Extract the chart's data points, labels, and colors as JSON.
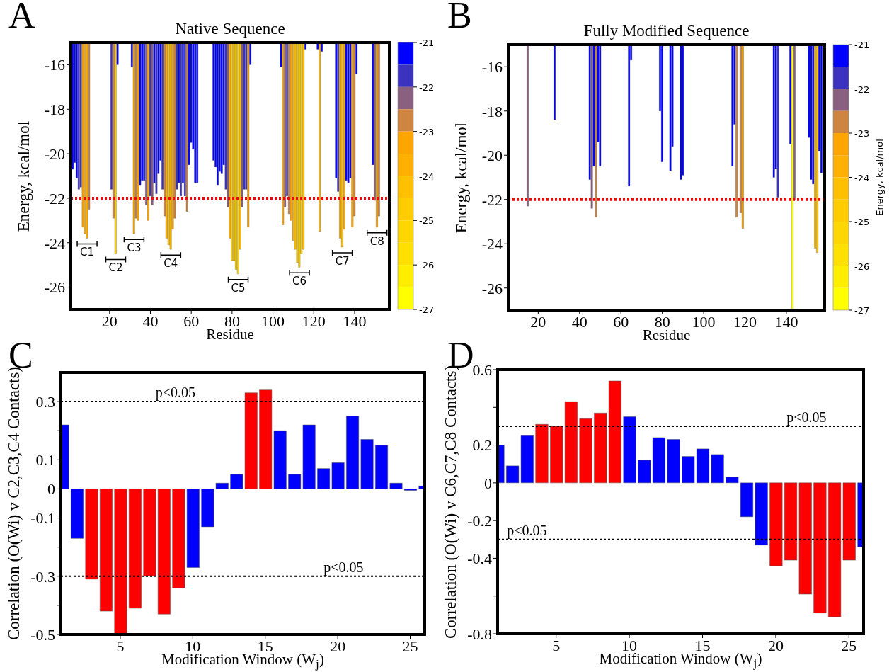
{
  "chart_data": [
    {
      "type": "bar",
      "title": "Native Sequence",
      "xlabel": "Residue",
      "ylabel": "Energy, kcal/mol",
      "annotations": [
        "A",
        {
          "text": "C1",
          "x": 9,
          "y": -23.8
        },
        {
          "text": "C2",
          "x": 23,
          "y": -24.5
        },
        {
          "text": "C3",
          "x": 32,
          "y": -23.6
        },
        {
          "text": "C4",
          "x": 50,
          "y": -24.3
        },
        {
          "text": "C5",
          "x": 83,
          "y": -25.4
        },
        {
          "text": "C6",
          "x": 113,
          "y": -25.1
        },
        {
          "text": "C7",
          "x": 134,
          "y": -24.2
        },
        {
          "text": "C8",
          "x": 151,
          "y": -23.3
        }
      ],
      "x": [
        2,
        3,
        4,
        5,
        6,
        7,
        8,
        9,
        10,
        21,
        22,
        23,
        24,
        31,
        32,
        33,
        34,
        35,
        36,
        37,
        38,
        39,
        40,
        41,
        42,
        43,
        44,
        45,
        46,
        47,
        48,
        49,
        50,
        51,
        52,
        53,
        54,
        55,
        56,
        57,
        58,
        59,
        60,
        61,
        62,
        63,
        71,
        72,
        73,
        74,
        75,
        76,
        77,
        78,
        79,
        80,
        81,
        82,
        83,
        84,
        85,
        86,
        87,
        88,
        89,
        104,
        105,
        106,
        107,
        108,
        109,
        110,
        111,
        112,
        113,
        114,
        115,
        116,
        122,
        123,
        124,
        131,
        132,
        133,
        134,
        135,
        136,
        137,
        138,
        139,
        140,
        141,
        149,
        150,
        151,
        152
      ],
      "values": [
        -20.7,
        -20.4,
        -21.1,
        -21.6,
        -21.5,
        -23.3,
        -23.6,
        -23.8,
        -22.5,
        -21.6,
        -22.9,
        -24.5,
        -16.0,
        -16.1,
        -23.6,
        -22.9,
        -23.0,
        -21.4,
        -21.2,
        -21.2,
        -22.3,
        -23.0,
        -21.9,
        -22.3,
        -21.3,
        -21.8,
        -20.9,
        -20.3,
        -21.6,
        -22.8,
        -23.8,
        -24.1,
        -24.3,
        -23.4,
        -22.9,
        -21.6,
        -21.3,
        -21.9,
        -21.3,
        -21.9,
        -22.6,
        -20.5,
        -19.5,
        -19.8,
        -21.3,
        -21.3,
        -20.3,
        -20.6,
        -21.4,
        -20.8,
        -20.9,
        -20.5,
        -21.6,
        -22.4,
        -23.8,
        -24.8,
        -24.8,
        -25.2,
        -25.4,
        -24.3,
        -22.4,
        -21.6,
        -21.6,
        -23.3,
        -16.0,
        -16.1,
        -23.2,
        -22.4,
        -21.9,
        -22.7,
        -23.0,
        -23.9,
        -24.3,
        -24.9,
        -25.1,
        -24.5,
        -24.3,
        -15.3,
        -15.3,
        -23.5,
        -15.4,
        -21.1,
        -21.7,
        -23.8,
        -24.2,
        -23.4,
        -21.2,
        -21.3,
        -21.1,
        -23.3,
        -22.8,
        -16.4,
        -20.5,
        -22.1,
        -23.3,
        -22.8
      ],
      "xlim": [
        1,
        157
      ],
      "xticks": [
        20,
        40,
        60,
        80,
        100,
        120,
        140
      ],
      "ylim": [
        -27,
        -15
      ],
      "yticks": [
        -26,
        -24,
        -22,
        -20,
        -18,
        -16
      ],
      "clim": [
        -27,
        -21
      ],
      "cticks": [
        -27,
        -26,
        -25,
        -24,
        -23,
        -22,
        -21
      ],
      "ref_lines": [
        {
          "axis": "y",
          "value": -22,
          "color": "#ff0000",
          "line_style": "dotted"
        }
      ]
    },
    {
      "type": "bar",
      "title": "Fully Modified Sequence",
      "xlabel": "Residue",
      "ylabel": "Energy, kcal/mol",
      "clabel": "Energy, kcal/mol",
      "annotations": [
        "B"
      ],
      "x": [
        15,
        28,
        45,
        46,
        47,
        48,
        49,
        50,
        64,
        65,
        79,
        80,
        84,
        85,
        89,
        90,
        114,
        115,
        116,
        118,
        119,
        134,
        135,
        136,
        142,
        143,
        144,
        151,
        152,
        153,
        154,
        155,
        156,
        157
      ],
      "values": [
        -22.3,
        -18.4,
        -21.1,
        -22.4,
        -20.5,
        -22.8,
        -19.4,
        -20.5,
        -21.4,
        -15.7,
        -18.0,
        -20.3,
        -20.7,
        -19.6,
        -21.1,
        -20.9,
        -20.5,
        -18.6,
        -22.8,
        -22.6,
        -23.3,
        -21.0,
        -20.6,
        -21.9,
        -19.5,
        -27.0,
        -22.0,
        -19.2,
        -21.1,
        -21.3,
        -24.2,
        -24.4,
        -19.8,
        -20.8
      ],
      "xlim": [
        5.5,
        158.5
      ],
      "xticks": [
        20,
        40,
        60,
        80,
        100,
        120,
        140
      ],
      "ylim": [
        -27,
        -15
      ],
      "yticks": [
        -26,
        -24,
        -22,
        -20,
        -18,
        -16
      ],
      "clim": [
        -27,
        -21
      ],
      "cticks": [
        -27,
        -26,
        -25,
        -24,
        -23,
        -22,
        -21
      ],
      "ref_lines": [
        {
          "axis": "y",
          "value": -22,
          "color": "#ff0000",
          "line_style": "dotted"
        }
      ]
    },
    {
      "type": "bar",
      "xlabel": "Modification Window (W$_{j}$)",
      "ylabel": "Correlation (O(Wi) v C2,C3,C4 Contacts)",
      "annotations": [
        "C",
        {
          "text": "p<0.05",
          "x": 8.8,
          "y": 0.3
        },
        {
          "text": "p<0.05",
          "x": 20.4,
          "y": -0.3
        }
      ],
      "x": [
        1,
        2,
        3,
        4,
        5,
        6,
        7,
        8,
        9,
        10,
        11,
        12,
        13,
        14,
        15,
        16,
        17,
        18,
        19,
        20,
        21,
        22,
        23,
        24,
        25,
        26
      ],
      "values": [
        0.22,
        -0.17,
        -0.31,
        -0.42,
        -0.5,
        -0.41,
        -0.3,
        -0.43,
        -0.34,
        -0.27,
        -0.13,
        0.02,
        0.05,
        0.33,
        0.34,
        0.2,
        0.05,
        0.22,
        0.07,
        0.09,
        0.25,
        0.17,
        0.15,
        0.02,
        -0.005,
        0.01
      ],
      "colors": [
        "#0000ff",
        "#0000ff",
        "#ff0000",
        "#ff0000",
        "#ff0000",
        "#ff0000",
        "#ff0000",
        "#ff0000",
        "#ff0000",
        "#0000ff",
        "#0000ff",
        "#0000ff",
        "#0000ff",
        "#ff0000",
        "#ff0000",
        "#0000ff",
        "#0000ff",
        "#0000ff",
        "#0000ff",
        "#0000ff",
        "#0000ff",
        "#0000ff",
        "#0000ff",
        "#0000ff",
        "#0000ff",
        "#0000ff"
      ],
      "xlim": [
        0.9,
        26
      ],
      "xticks": [
        5,
        10,
        15,
        20,
        25
      ],
      "ylim": [
        -0.5,
        0.4
      ],
      "yticks": [
        -0.5,
        {
          "value": -0.4,
          "label": null
        },
        -0.3,
        {
          "value": -0.2,
          "label": null
        },
        -0.1,
        0,
        0.1,
        {
          "value": 0.2,
          "label": null
        },
        0.3
      ],
      "ref_lines": [
        {
          "axis": "y",
          "value": 0.3,
          "color": "#000000",
          "line_style": "dotted"
        },
        {
          "axis": "y",
          "value": -0.3,
          "color": "#000000",
          "line_style": "dotted"
        }
      ]
    },
    {
      "type": "bar",
      "xlabel": "Modification Window (W$_{j}$)",
      "ylabel": "Correlation (O(Wi) v C6,C7,C8 Contacts)",
      "annotations": [
        "D",
        {
          "text": "p<0.05",
          "x": 22.1,
          "y": 0.3
        },
        {
          "text": "p<0.05",
          "x": 3,
          "y": -0.3
        }
      ],
      "x": [
        1,
        2,
        3,
        4,
        5,
        6,
        7,
        8,
        9,
        10,
        11,
        12,
        13,
        14,
        15,
        16,
        17,
        18,
        19,
        20,
        21,
        22,
        23,
        24,
        25,
        26
      ],
      "values": [
        0.2,
        0.09,
        0.25,
        0.31,
        0.3,
        0.43,
        0.34,
        0.37,
        0.54,
        0.35,
        0.12,
        0.24,
        0.23,
        0.14,
        0.18,
        0.15,
        0.03,
        -0.18,
        -0.33,
        -0.44,
        -0.41,
        -0.59,
        -0.69,
        -0.71,
        -0.41,
        -0.34
      ],
      "colors": [
        "#0000ff",
        "#0000ff",
        "#0000ff",
        "#ff0000",
        "#ff0000",
        "#ff0000",
        "#ff0000",
        "#ff0000",
        "#ff0000",
        "#0000ff",
        "#0000ff",
        "#0000ff",
        "#0000ff",
        "#0000ff",
        "#0000ff",
        "#0000ff",
        "#0000ff",
        "#0000ff",
        "#0000ff",
        "#ff0000",
        "#ff0000",
        "#ff0000",
        "#ff0000",
        "#ff0000",
        "#ff0000",
        "#0000ff"
      ],
      "xlim": [
        1,
        26
      ],
      "xticks": [
        5,
        10,
        15,
        20,
        25
      ],
      "ylim": [
        -0.8,
        0.6
      ],
      "yticks": [
        -0.8,
        {
          "value": -0.6,
          "label": null
        },
        -0.4,
        -0.2,
        0,
        0.2,
        {
          "value": 0.4,
          "label": null
        },
        0.6
      ],
      "ref_lines": [
        {
          "axis": "y",
          "value": 0.3,
          "color": "#000000",
          "line_style": "dotted"
        },
        {
          "axis": "y",
          "value": -0.3,
          "color": "#000000",
          "line_style": "dotted"
        }
      ]
    }
  ]
}
